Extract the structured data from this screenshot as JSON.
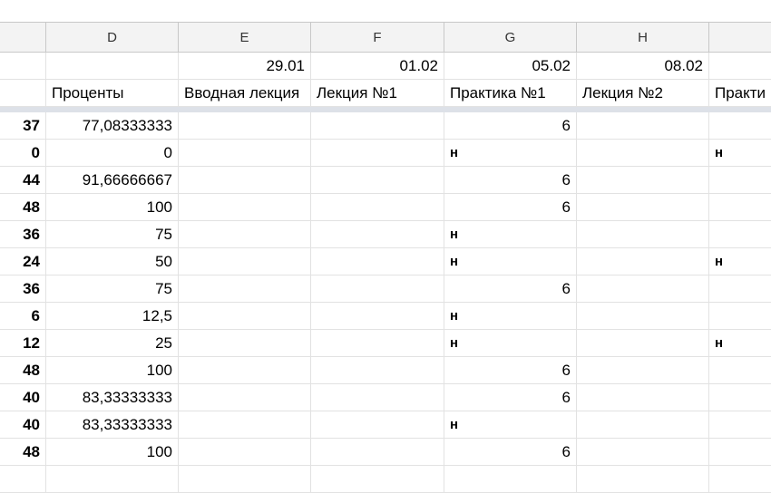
{
  "columns": [
    "",
    "D",
    "E",
    "F",
    "G",
    "H",
    ""
  ],
  "dates": [
    "",
    "",
    "29.01",
    "01.02",
    "05.02",
    "08.02",
    ""
  ],
  "headers": [
    "",
    "Проценты",
    "Вводная лекция",
    "Лекция №1",
    "Практика №1",
    "Лекция №2",
    "Практи"
  ],
  "rows": [
    [
      "37",
      "77,08333333",
      "",
      "",
      "6",
      "",
      ""
    ],
    [
      "0",
      "0",
      "",
      "",
      "н",
      "",
      "н"
    ],
    [
      "44",
      "91,66666667",
      "",
      "",
      "6",
      "",
      ""
    ],
    [
      "48",
      "100",
      "",
      "",
      "6",
      "",
      ""
    ],
    [
      "36",
      "75",
      "",
      "",
      "н",
      "",
      ""
    ],
    [
      "24",
      "50",
      "",
      "",
      "н",
      "",
      "н"
    ],
    [
      "36",
      "75",
      "",
      "",
      "6",
      "",
      ""
    ],
    [
      "6",
      "12,5",
      "",
      "",
      "н",
      "",
      ""
    ],
    [
      "12",
      "25",
      "",
      "",
      "н",
      "",
      "н"
    ],
    [
      "48",
      "100",
      "",
      "",
      "6",
      "",
      ""
    ],
    [
      "40",
      "83,33333333",
      "",
      "",
      "6",
      "",
      ""
    ],
    [
      "40",
      "83,33333333",
      "",
      "",
      "н",
      "",
      ""
    ],
    [
      "48",
      "100",
      "",
      "",
      "6",
      "",
      ""
    ],
    [
      "",
      "",
      "",
      "",
      "",
      "",
      ""
    ]
  ]
}
